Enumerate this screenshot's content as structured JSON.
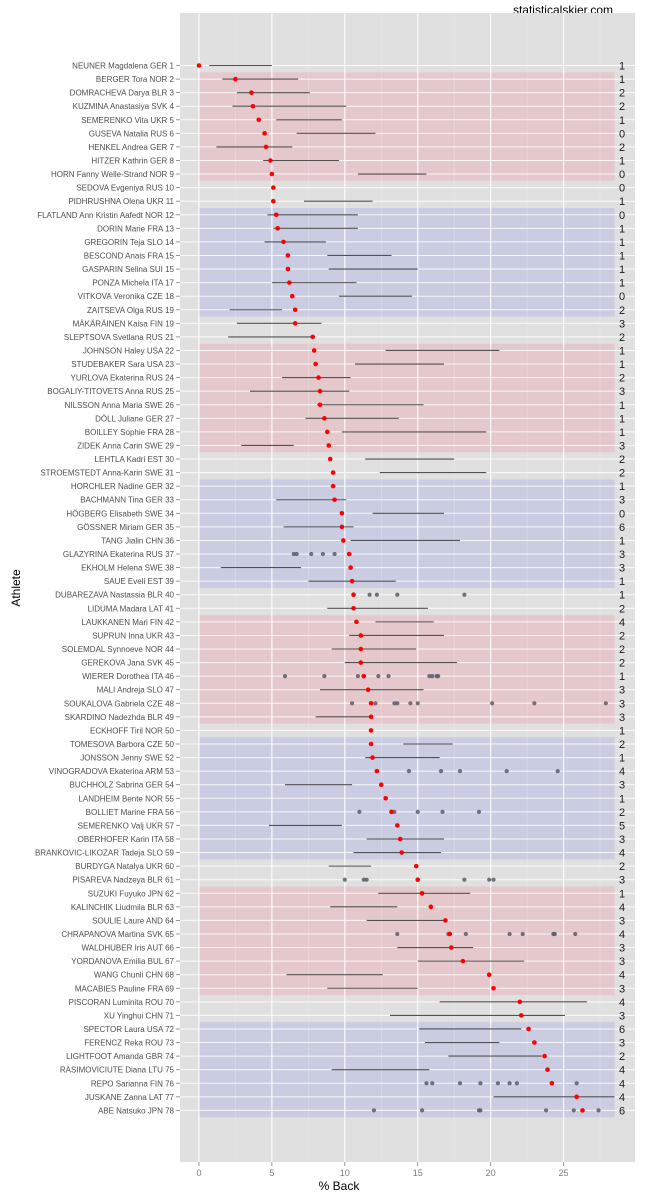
{
  "chart_data": {
    "type": "scatter",
    "credit": "statisticalskier.com",
    "xlabel": "% Back",
    "ylabel": "Athlete",
    "xlim": [
      -1.3,
      29.9
    ],
    "xticks": [
      0,
      5,
      10,
      15,
      20,
      25
    ],
    "grid": true,
    "band_colors": {
      "red": "#e5c5c9",
      "blue": "#c8cae2"
    },
    "point_color": "#ff0000",
    "other_color": "#5a5a6a",
    "bands": [
      {
        "from": 2,
        "to": 9,
        "color": "red"
      },
      {
        "from": 12,
        "to": 19,
        "color": "blue"
      },
      {
        "from": 22,
        "to": 29,
        "color": "red"
      },
      {
        "from": 32,
        "to": 39,
        "color": "blue"
      },
      {
        "from": 42,
        "to": 49,
        "color": "red"
      },
      {
        "from": 51,
        "to": 59,
        "color": "blue"
      },
      {
        "from": 62,
        "to": 69,
        "color": "red"
      },
      {
        "from": 72,
        "to": 78,
        "color": "blue"
      }
    ],
    "athletes": [
      {
        "label": "NEUNER Magdalena GER 1",
        "value": 0.0,
        "range": [
          0.7,
          5.0
        ],
        "count": "1"
      },
      {
        "label": "BERGER Tora NOR 2",
        "value": 2.5,
        "range": [
          1.6,
          6.8
        ],
        "count": "1"
      },
      {
        "label": "DOMRACHEVA Darya BLR 3",
        "value": 3.6,
        "range": [
          2.6,
          7.6
        ],
        "count": "2"
      },
      {
        "label": "KUZMINA Anastasiya SVK 4",
        "value": 3.7,
        "range": [
          2.3,
          10.1
        ],
        "count": "2"
      },
      {
        "label": "SEMERENKO Vita UKR 5",
        "value": 4.1,
        "range": [
          5.3,
          9.8
        ],
        "count": "1"
      },
      {
        "label": "GUSEVA Natalia RUS 6",
        "value": 4.5,
        "range": [
          6.7,
          12.1
        ],
        "count": "0"
      },
      {
        "label": "HENKEL Andrea GER 7",
        "value": 4.6,
        "range": [
          1.2,
          6.4
        ],
        "count": "2"
      },
      {
        "label": "HITZER Kathrin GER 8",
        "value": 4.9,
        "range": [
          4.4,
          9.6
        ],
        "count": "1"
      },
      {
        "label": "HORN Fanny Welle-Strand NOR 9",
        "value": 5.0,
        "range": [
          10.9,
          15.6
        ],
        "count": "0"
      },
      {
        "label": "SEDOVA Evgeniya RUS 10",
        "value": 5.1,
        "range": null,
        "count": "0"
      },
      {
        "label": "PIDHRUSHNA Olena UKR 11",
        "value": 5.1,
        "range": [
          7.2,
          11.9
        ],
        "count": "1"
      },
      {
        "label": "FLATLAND Ann Kristin Aafedt NOR 12",
        "value": 5.3,
        "range": [
          4.7,
          10.9
        ],
        "count": "0"
      },
      {
        "label": "DORIN Marie FRA 13",
        "value": 5.4,
        "range": [
          5.1,
          10.9
        ],
        "count": "1"
      },
      {
        "label": "GREGORIN Teja SLO 14",
        "value": 5.8,
        "range": [
          4.5,
          8.7
        ],
        "count": "1"
      },
      {
        "label": "BESCOND Anais FRA 15",
        "value": 6.1,
        "range": [
          8.8,
          13.2
        ],
        "count": "1"
      },
      {
        "label": "GASPARIN Selina SUI 15",
        "value": 6.1,
        "range": [
          8.9,
          15.0
        ],
        "count": "1"
      },
      {
        "label": "PONZA Michela ITA 17",
        "value": 6.2,
        "range": [
          5.0,
          10.8
        ],
        "count": "1"
      },
      {
        "label": "VITKOVA Veronika CZE 18",
        "value": 6.4,
        "range": [
          9.6,
          14.6
        ],
        "count": "0"
      },
      {
        "label": "ZAITSEVA Olga RUS 19",
        "value": 6.6,
        "range": [
          2.1,
          5.7
        ],
        "count": "2"
      },
      {
        "label": "MÄKÄRÄINEN Kaisa FIN 19",
        "value": 6.6,
        "range": [
          2.6,
          8.4
        ],
        "count": "3"
      },
      {
        "label": "SLEPTSOVA Svetlana RUS 21",
        "value": 7.8,
        "range": [
          2.0,
          7.7
        ],
        "count": "2"
      },
      {
        "label": "JOHNSON Haley USA 22",
        "value": 7.9,
        "range": [
          12.8,
          20.6
        ],
        "count": "1"
      },
      {
        "label": "STUDEBAKER Sara USA 23",
        "value": 8.0,
        "range": [
          10.7,
          16.8
        ],
        "count": "1"
      },
      {
        "label": "YURLOVA Ekaterina RUS 24",
        "value": 8.2,
        "range": [
          5.7,
          10.4
        ],
        "count": "2"
      },
      {
        "label": "BOGALIY-TITOVETS Anna RUS 25",
        "value": 8.3,
        "range": [
          3.5,
          10.3
        ],
        "count": "3"
      },
      {
        "label": "NILSSON Anna Maria SWE 26",
        "value": 8.3,
        "range": [
          8.1,
          15.4
        ],
        "count": "1"
      },
      {
        "label": "DÖLL Juliane GER 27",
        "value": 8.6,
        "range": [
          7.3,
          13.7
        ],
        "count": "1"
      },
      {
        "label": "BOILLEY Sophie FRA 28",
        "value": 8.8,
        "range": [
          9.8,
          19.7
        ],
        "count": "1"
      },
      {
        "label": "ZIDEK Anna Carin SWE 29",
        "value": 8.9,
        "range": [
          2.9,
          6.5
        ],
        "count": "3"
      },
      {
        "label": "LEHTLA Kadri EST 30",
        "value": 9.0,
        "range": [
          11.4,
          17.5
        ],
        "count": "2"
      },
      {
        "label": "STROEMSTEDT Anna-Karin SWE 31",
        "value": 9.2,
        "range": [
          12.4,
          19.7
        ],
        "count": "2"
      },
      {
        "label": "HORCHLER Nadine GER 32",
        "value": 9.2,
        "range": null,
        "count": "1"
      },
      {
        "label": "BACHMANN Tina GER 33",
        "value": 9.3,
        "range": [
          5.3,
          10.1
        ],
        "count": "3"
      },
      {
        "label": "HÖGBERG Elisabeth SWE 34",
        "value": 9.8,
        "range": [
          11.9,
          16.8
        ],
        "count": "0"
      },
      {
        "label": "GÖSSNER Miriam GER 35",
        "value": 9.8,
        "range": [
          5.8,
          10.6
        ],
        "count": "6"
      },
      {
        "label": "TANG Jialin CHN 36",
        "value": 9.9,
        "range": [
          10.4,
          17.9
        ],
        "count": "1"
      },
      {
        "label": "GLAZYRINA Ekaterina RUS 37",
        "value": 10.3,
        "range": null,
        "others": [
          6.5,
          6.7,
          7.7,
          8.5,
          9.3
        ],
        "count": "3"
      },
      {
        "label": "EKHOLM Helena SWE 38",
        "value": 10.4,
        "range": [
          1.5,
          7.0
        ],
        "count": "3"
      },
      {
        "label": "SAUE Eveli EST 39",
        "value": 10.5,
        "range": [
          7.5,
          13.5
        ],
        "count": "1"
      },
      {
        "label": "DUBAREZAVA Nastassia BLR 40",
        "value": 10.6,
        "range": null,
        "others": [
          11.7,
          12.2,
          13.6,
          18.2
        ],
        "count": "1"
      },
      {
        "label": "LIDUMA Madara LAT 41",
        "value": 10.6,
        "range": [
          8.8,
          15.7
        ],
        "count": "2"
      },
      {
        "label": "LAUKKANEN Mari FIN 42",
        "value": 10.8,
        "range": [
          12.1,
          16.1
        ],
        "count": "4"
      },
      {
        "label": "SUPRUN Inna UKR 43",
        "value": 11.1,
        "range": [
          10.3,
          16.8
        ],
        "count": "2"
      },
      {
        "label": "SOLEMDAL Synnoeve NOR 44",
        "value": 11.1,
        "range": [
          9.1,
          14.9
        ],
        "count": "2"
      },
      {
        "label": "GEREKOVA Jana SVK 45",
        "value": 11.1,
        "range": [
          10.0,
          17.7
        ],
        "count": "2"
      },
      {
        "label": "WIERER Dorothea ITA 46",
        "value": 11.3,
        "range": null,
        "others": [
          5.9,
          8.6,
          10.9,
          12.3,
          13.0,
          15.8,
          16.0,
          16.3,
          16.4
        ],
        "count": "1"
      },
      {
        "label": "MALI Andreja SLO 47",
        "value": 11.6,
        "range": [
          8.3,
          15.4
        ],
        "count": "3"
      },
      {
        "label": "SOUKALOVA Gabriela CZE 48",
        "value": 11.8,
        "range": null,
        "others": [
          10.5,
          12.1,
          13.4,
          13.6,
          14.5,
          15.0,
          20.1,
          23.0,
          27.9
        ],
        "count": "3"
      },
      {
        "label": "SKARDINO Nadezhda BLR 49",
        "value": 11.8,
        "range": [
          8.0,
          11.7
        ],
        "count": "3"
      },
      {
        "label": "ECKHOFF Tiril NOR 50",
        "value": 11.8,
        "range": null,
        "count": "1"
      },
      {
        "label": "TOMESOVA Barbora CZE 50",
        "value": 11.8,
        "range": [
          14.0,
          17.4
        ],
        "count": "2"
      },
      {
        "label": "JONSSON Jenny SWE 52",
        "value": 11.9,
        "range": [
          11.4,
          16.5
        ],
        "count": "1"
      },
      {
        "label": "VINOGRADOVA Ekaterina ARM 53",
        "value": 12.2,
        "range": null,
        "others": [
          14.4,
          16.6,
          17.9,
          21.1,
          24.6
        ],
        "count": "4"
      },
      {
        "label": "BUCHHOLZ Sabrina GER 54",
        "value": 12.5,
        "range": [
          5.9,
          10.5
        ],
        "count": "3"
      },
      {
        "label": "LANDHEIM Bente NOR 55",
        "value": 12.8,
        "range": null,
        "count": "1"
      },
      {
        "label": "BOLLIET Marine FRA 56",
        "value": 13.2,
        "range": null,
        "others": [
          11.0,
          13.4,
          15.0,
          16.7,
          19.2
        ],
        "count": "2"
      },
      {
        "label": "SEMERENKO Valj UKR 57",
        "value": 13.6,
        "range": [
          4.8,
          9.8
        ],
        "count": "5"
      },
      {
        "label": "OBERHOFER Karin ITA 58",
        "value": 13.8,
        "range": [
          11.5,
          16.8
        ],
        "count": "3"
      },
      {
        "label": "BRANKOVIC-LIKOZAR Tadeja SLO 59",
        "value": 13.9,
        "range": [
          10.6,
          16.6
        ],
        "count": "4"
      },
      {
        "label": "BURDYGA Natalya UKR 60",
        "value": 14.9,
        "range": [
          8.9,
          11.8
        ],
        "count": "2"
      },
      {
        "label": "PISAREVA  Nadzeya BLR 61",
        "value": 15.0,
        "range": null,
        "others": [
          10.0,
          11.3,
          11.5,
          18.2,
          19.9,
          20.2
        ],
        "count": "3"
      },
      {
        "label": "SUZUKI Fuyuko JPN 62",
        "value": 15.3,
        "range": [
          12.3,
          18.6
        ],
        "count": "1"
      },
      {
        "label": "KALINCHIK Liudmila BLR 63",
        "value": 15.9,
        "range": [
          9.0,
          13.6
        ],
        "count": "4"
      },
      {
        "label": "SOULIE Laure AND 64",
        "value": 16.9,
        "range": [
          11.5,
          16.8
        ],
        "count": "3"
      },
      {
        "label": "CHRAPANOVA Martina SVK 65",
        "value": 17.2,
        "range": null,
        "others": [
          13.6,
          17.1,
          18.3,
          21.3,
          22.2,
          24.3,
          24.4,
          25.8
        ],
        "count": "4"
      },
      {
        "label": "WALDHUBER Iris AUT 66",
        "value": 17.3,
        "range": [
          13.6,
          18.8
        ],
        "count": "3"
      },
      {
        "label": "YORDANOVA Emilia BUL 67",
        "value": 18.1,
        "range": [
          15.0,
          22.3
        ],
        "count": "3"
      },
      {
        "label": "WANG Chunli CHN 68",
        "value": 19.9,
        "range": [
          6.0,
          12.6
        ],
        "count": "4"
      },
      {
        "label": "MACABIES Pauline FRA 69",
        "value": 20.2,
        "range": [
          8.8,
          15.0
        ],
        "count": "3"
      },
      {
        "label": "PISCORAN Luminita ROU 70",
        "value": 22.0,
        "range": [
          16.5,
          26.6
        ],
        "count": "4"
      },
      {
        "label": "XU Yinghui CHN 71",
        "value": 22.1,
        "range": [
          13.1,
          25.1
        ],
        "count": "3"
      },
      {
        "label": "SPECTOR Laura USA 72",
        "value": 22.6,
        "range": [
          15.1,
          22.1
        ],
        "count": "6"
      },
      {
        "label": "FERENCZ Reka ROU 73",
        "value": 23.0,
        "range": [
          15.5,
          20.6
        ],
        "count": "3"
      },
      {
        "label": "LIGHTFOOT Amanda GBR 74",
        "value": 23.7,
        "range": [
          17.1,
          23.5
        ],
        "count": "2"
      },
      {
        "label": "RASIMOVICIUTE Diana LTU 75",
        "value": 23.9,
        "range": [
          9.1,
          15.8
        ],
        "count": "4"
      },
      {
        "label": "REPO Sarianna FIN 76",
        "value": 24.2,
        "range": null,
        "others": [
          15.6,
          16.0,
          17.9,
          19.3,
          20.5,
          21.3,
          21.8,
          25.9
        ],
        "count": "4"
      },
      {
        "label": "JUSKANE Zanna LAT 77",
        "value": 25.9,
        "range": [
          20.2,
          28.5
        ],
        "count": "4"
      },
      {
        "label": "ABE Natsuko JPN 78",
        "value": 26.3,
        "range": null,
        "others": [
          12.0,
          15.3,
          19.2,
          19.3,
          23.8,
          25.7,
          27.4
        ],
        "count": "6"
      }
    ]
  }
}
